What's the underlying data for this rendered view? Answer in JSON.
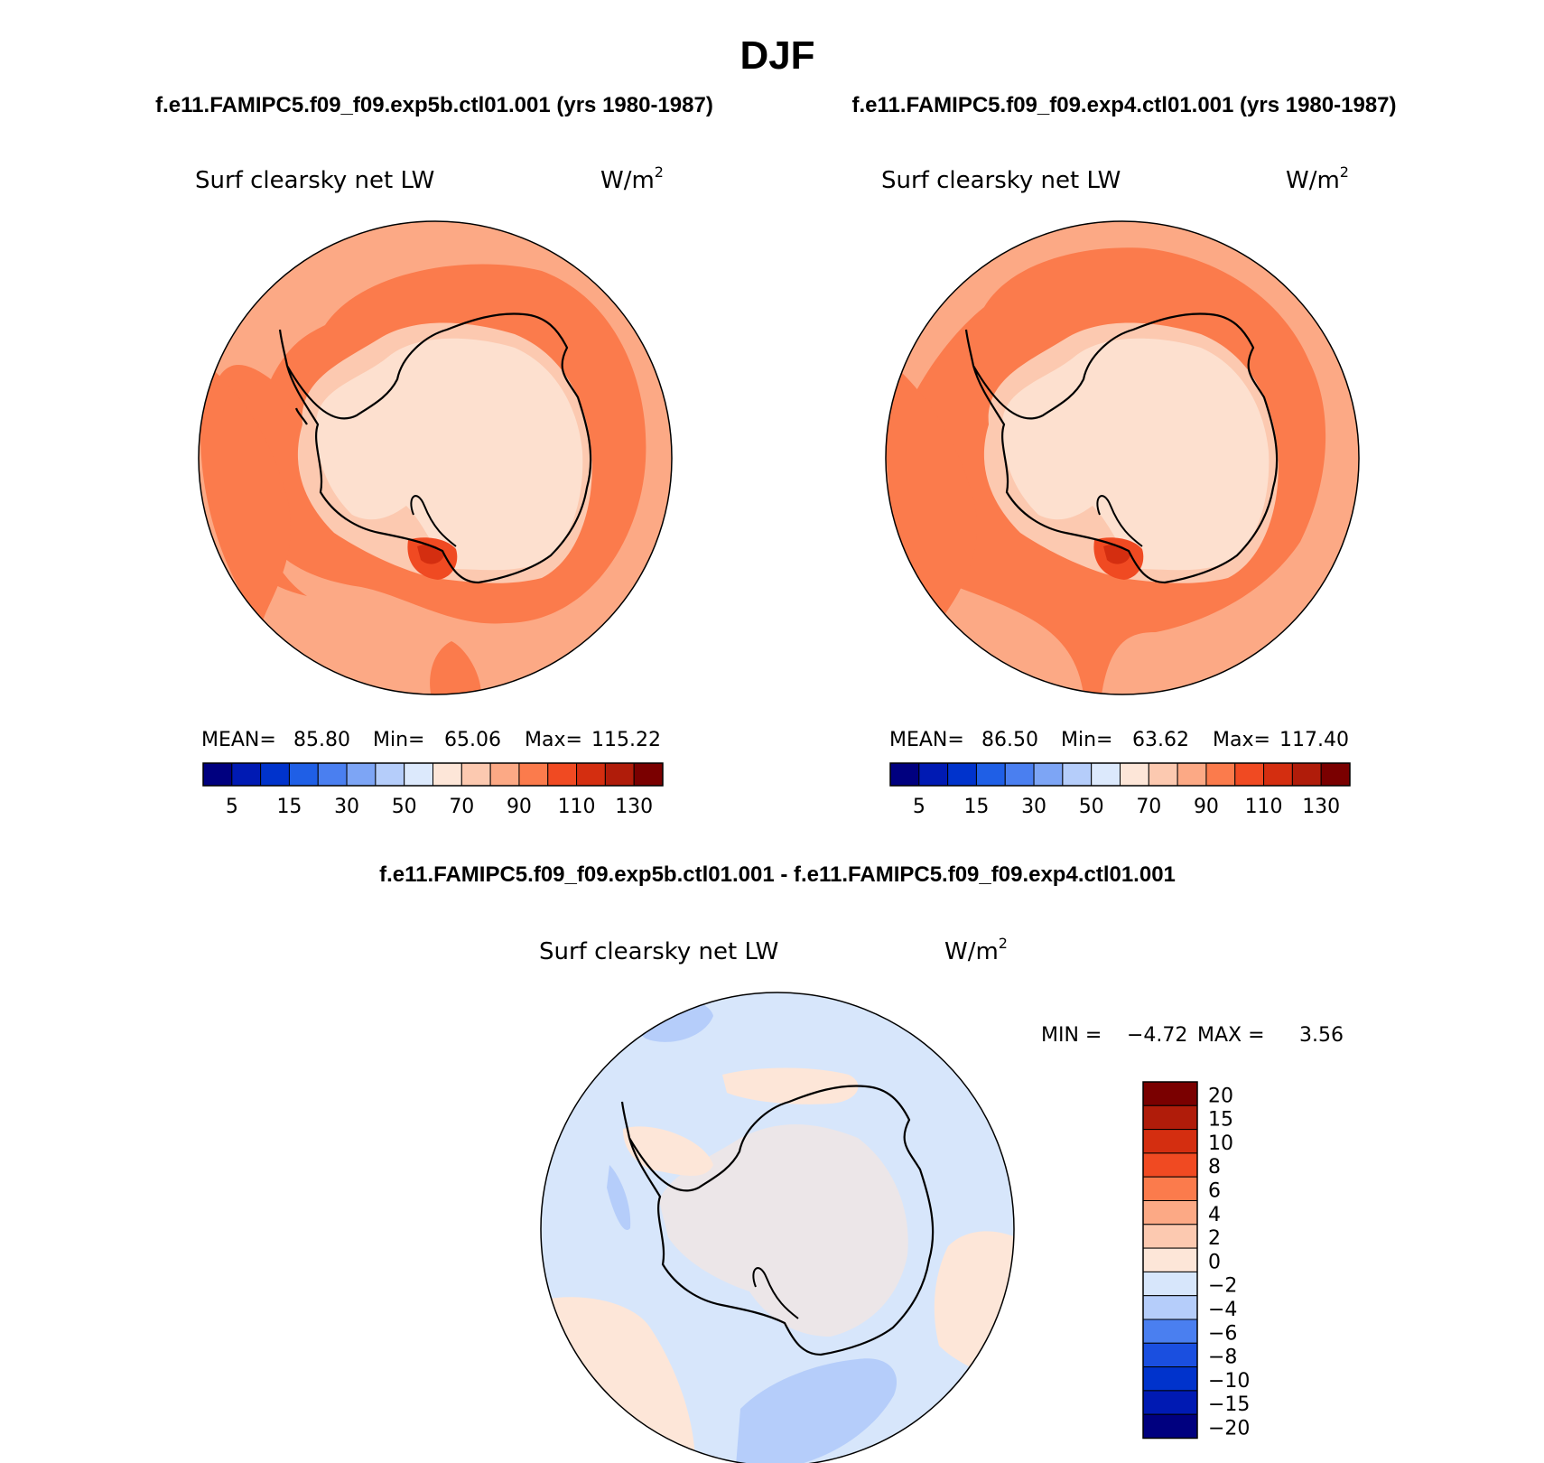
{
  "figure": {
    "title": "DJF",
    "top_left_case": "f.e11.FAMIPC5.f09_f09.exp5b.ctl01.001 (yrs 1980-1987)",
    "top_right_case": "f.e11.FAMIPC5.f09_f09.exp4.ctl01.001 (yrs 1980-1987)",
    "diff_title": "f.e11.FAMIPC5.f09_f09.exp5b.ctl01.001 - f.e11.FAMIPC5.f09_f09.exp4.ctl01.001"
  },
  "colors": {
    "abs_scale": [
      "#00007f",
      "#001ab3",
      "#0033cc",
      "#1f5fe6",
      "#4a7ff0",
      "#7da5f5",
      "#b5cdfa",
      "#dce9fc",
      "#fde6d8",
      "#fcc9b0",
      "#fca985",
      "#fb7b4c",
      "#f04a22",
      "#d42e10",
      "#b01c0a",
      "#7a0000"
    ],
    "diff_scale": [
      "#00007f",
      "#001ab3",
      "#0033cc",
      "#1a4fe0",
      "#4a7ff0",
      "#b5cdfa",
      "#d7e6fb",
      "#fde6d8",
      "#fcc9b0",
      "#fca985",
      "#fb7b4c",
      "#f04a22",
      "#d42e10",
      "#b01c0a",
      "#7a0000"
    ],
    "coast": "#000000"
  },
  "chart_data": [
    {
      "type": "heatmap",
      "projection": "south-polar-stereographic",
      "title": "Surf clearsky net LW",
      "units": "W/m2",
      "stats": {
        "mean_label": "MEAN=",
        "mean": "85.80",
        "min_label": "Min=",
        "min": "65.06",
        "max_label": "Max=",
        "max": "115.22"
      },
      "colorbar": {
        "orientation": "horizontal",
        "levels": [
          5,
          10,
          15,
          20,
          30,
          40,
          50,
          60,
          70,
          80,
          90,
          100,
          110,
          120,
          130
        ],
        "tick_labels": [
          "5",
          "15",
          "30",
          "50",
          "70",
          "90",
          "110",
          "130"
        ]
      },
      "regions": [
        {
          "name": "ocean-background",
          "range": "90-100"
        },
        {
          "name": "ocean-band-outer",
          "range": "100-110"
        },
        {
          "name": "antarctic-continent",
          "range": "70-80"
        },
        {
          "name": "coastal-margin",
          "range": "80-90"
        },
        {
          "name": "ross-ice-shelf-hotspot",
          "range": "110-130"
        }
      ]
    },
    {
      "type": "heatmap",
      "projection": "south-polar-stereographic",
      "title": "Surf clearsky net LW",
      "units": "W/m2",
      "stats": {
        "mean_label": "MEAN=",
        "mean": "86.50",
        "min_label": "Min=",
        "min": "63.62",
        "max_label": "Max=",
        "max": "117.40"
      },
      "colorbar": {
        "orientation": "horizontal",
        "levels": [
          5,
          10,
          15,
          20,
          30,
          40,
          50,
          60,
          70,
          80,
          90,
          100,
          110,
          120,
          130
        ],
        "tick_labels": [
          "5",
          "15",
          "30",
          "50",
          "70",
          "90",
          "110",
          "130"
        ]
      },
      "regions": [
        {
          "name": "ocean-background",
          "range": "90-100"
        },
        {
          "name": "ocean-band-outer",
          "range": "100-110"
        },
        {
          "name": "antarctic-continent",
          "range": "70-80"
        },
        {
          "name": "coastal-margin",
          "range": "80-90"
        },
        {
          "name": "ross-ice-shelf-hotspot",
          "range": "110-130"
        }
      ]
    },
    {
      "type": "heatmap",
      "projection": "south-polar-stereographic",
      "title": "Surf clearsky net LW",
      "units": "W/m2",
      "stats": {
        "min_label": "MIN =",
        "min": "−4.72",
        "max_label": "MAX =",
        "max": "3.56"
      },
      "colorbar": {
        "orientation": "vertical",
        "levels": [
          -20,
          -15,
          -10,
          -8,
          -6,
          -4,
          -2,
          0,
          2,
          4,
          6,
          8,
          10,
          15,
          20
        ],
        "tick_labels": [
          "20",
          "15",
          "10",
          "8",
          "6",
          "4",
          "2",
          "0",
          "−2",
          "−4",
          "−6",
          "−8",
          "−10",
          "−15",
          "−20"
        ]
      },
      "regions": [
        {
          "name": "background",
          "range": "-2-0"
        },
        {
          "name": "positive-patches",
          "range": "0-2"
        },
        {
          "name": "negative-patches",
          "range": "-4--2"
        }
      ]
    }
  ]
}
